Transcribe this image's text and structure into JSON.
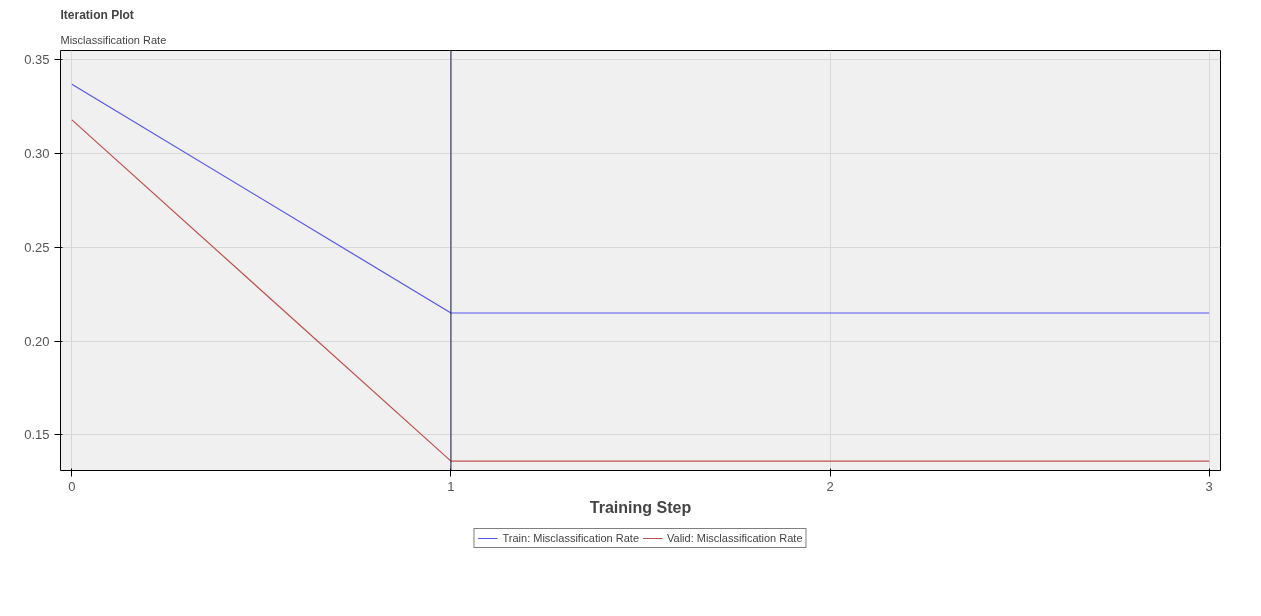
{
  "chart_data": {
    "type": "line",
    "title": "Iteration Plot",
    "subtitle": "Misclassification Rate",
    "xlabel": "Training Step",
    "x": [
      0,
      1,
      2,
      3
    ],
    "series": [
      {
        "name": "Train: Misclassification Rate",
        "color": "#5555ee",
        "values": [
          0.337,
          0.215,
          0.215,
          0.215
        ]
      },
      {
        "name": "Valid: Misclassification Rate",
        "color": "#c0504d",
        "values": [
          0.318,
          0.136,
          0.136,
          0.136
        ]
      }
    ],
    "xlim": [
      -0.03,
      3.03
    ],
    "ylim": [
      0.131,
      0.355
    ],
    "xticks": [
      0,
      1,
      2,
      3
    ],
    "yticks": [
      {
        "value": 0.15,
        "label": "0.15"
      },
      {
        "value": 0.2,
        "label": "0.20"
      },
      {
        "value": 0.25,
        "label": "0.25"
      },
      {
        "value": 0.3,
        "label": "0.30"
      },
      {
        "value": 0.35,
        "label": "0.35"
      }
    ],
    "ref_lines": [
      {
        "axis": "x",
        "value": 1,
        "color": "#1a1a4a"
      }
    ],
    "grid": true,
    "legend": "bottom",
    "marker": "none",
    "line_style": "solid"
  }
}
